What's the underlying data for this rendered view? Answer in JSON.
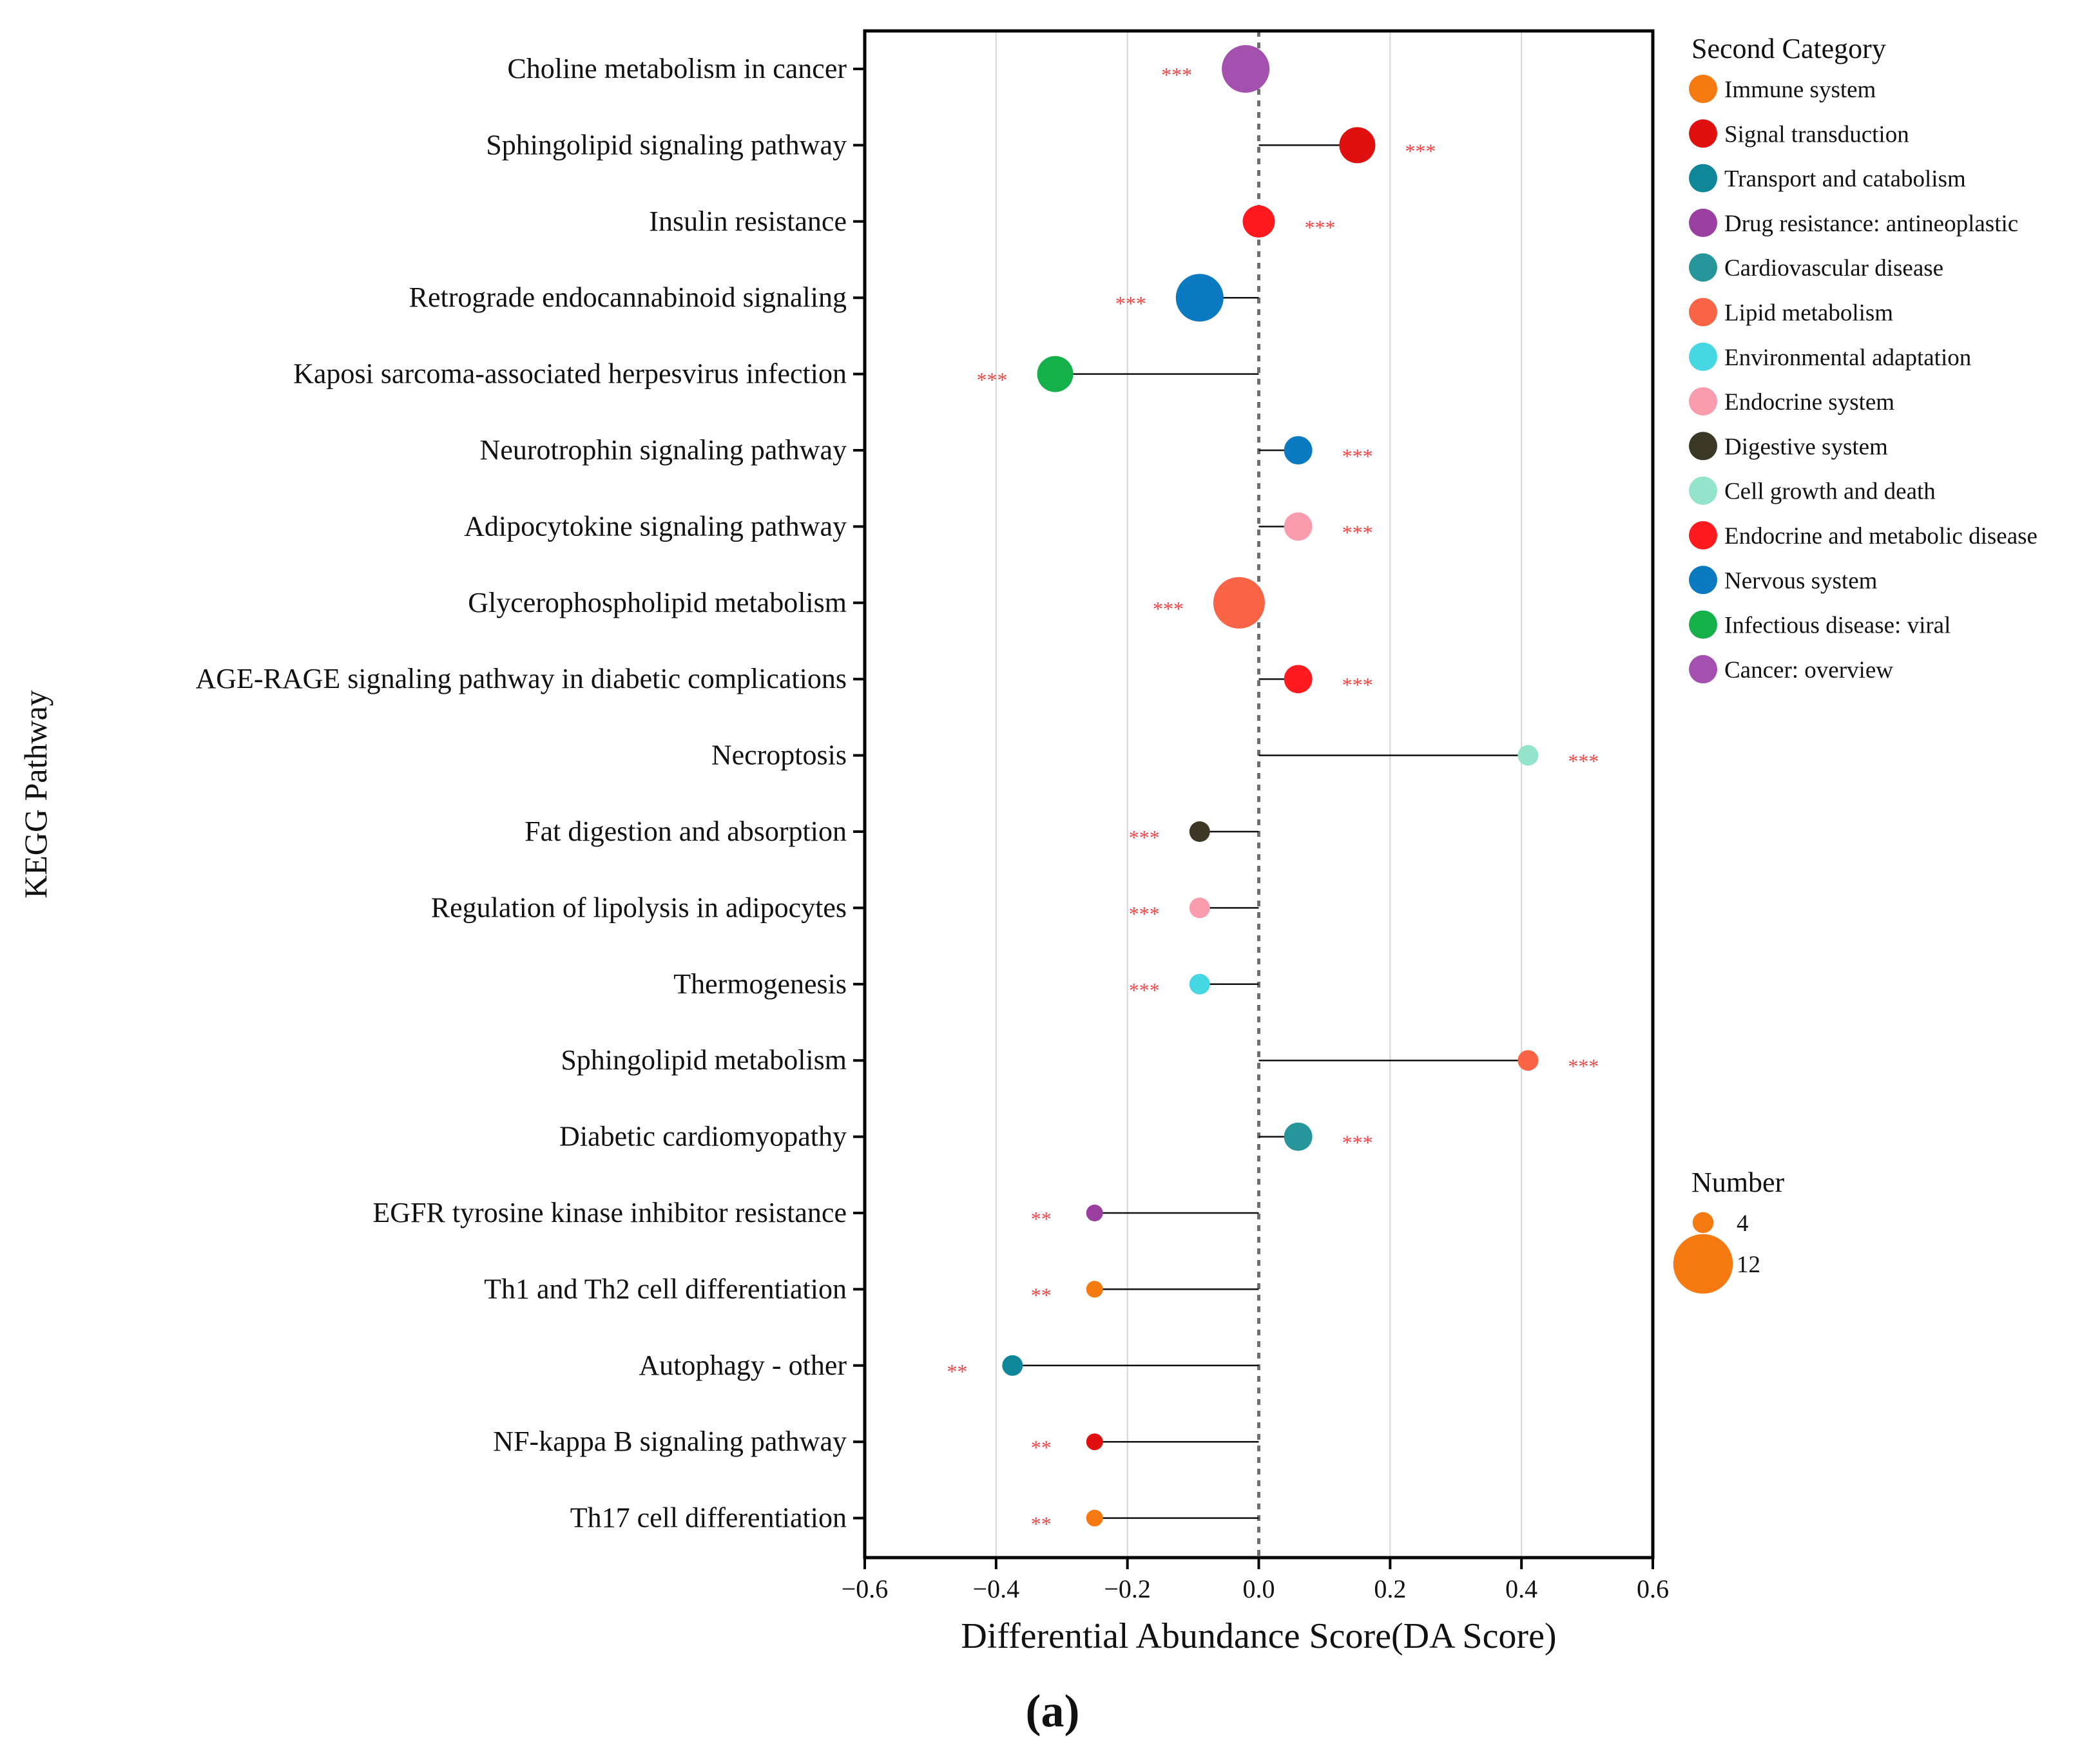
{
  "chart_data": {
    "type": "lollipop",
    "xlabel": "Differential Abundance Score(DA Score)",
    "ylabel": "KEGG Pathway",
    "xlim": [
      -0.6,
      0.6
    ],
    "xticks": [
      -0.6,
      -0.4,
      -0.2,
      0.0,
      0.2,
      0.4,
      0.6
    ],
    "xtick_labels": [
      "−0.6",
      "−0.4",
      "−0.2",
      "0.0",
      "0.2",
      "0.4",
      "0.6"
    ],
    "grid": "vertical",
    "panel_label": "(a)",
    "legend_category_title": "Second Category",
    "legend_size_title": "Number",
    "categories": [
      {
        "name": "Immune system",
        "color": "#F57A12"
      },
      {
        "name": "Signal transduction",
        "color": "#E01010"
      },
      {
        "name": "Transport and catabolism",
        "color": "#0F8799"
      },
      {
        "name": "Drug resistance: antineoplastic",
        "color": "#9A3FA0"
      },
      {
        "name": "Cardiovascular disease",
        "color": "#27969A"
      },
      {
        "name": "Lipid metabolism",
        "color": "#F96346"
      },
      {
        "name": "Environmental adaptation",
        "color": "#45D7E2"
      },
      {
        "name": "Endocrine system",
        "color": "#F99CAD"
      },
      {
        "name": "Digestive system",
        "color": "#3B3926"
      },
      {
        "name": "Cell growth and death",
        "color": "#94E3CB"
      },
      {
        "name": "Endocrine and metabolic disease",
        "color": "#FF1A1F"
      },
      {
        "name": "Nervous system",
        "color": "#0B7AC0"
      },
      {
        "name": "Infectious disease: viral",
        "color": "#15B04A"
      },
      {
        "name": "Cancer: overview",
        "color": "#A450AE"
      }
    ],
    "size_legend": [
      {
        "label": "4",
        "value": 4
      },
      {
        "label": "12",
        "value": 12
      }
    ],
    "significance_color": "#F04545",
    "pathways": [
      {
        "name": "Choline metabolism in cancer",
        "da": -0.02,
        "category": "Cancer: overview",
        "number": 12,
        "sig": "***"
      },
      {
        "name": "Sphingolipid signaling pathway",
        "da": 0.15,
        "category": "Signal transduction",
        "number": 9,
        "sig": "***"
      },
      {
        "name": "Insulin resistance",
        "da": 0.0,
        "category": "Endocrine and metabolic disease",
        "number": 8,
        "sig": "***"
      },
      {
        "name": "Retrograde endocannabinoid signaling",
        "da": -0.09,
        "category": "Nervous system",
        "number": 12,
        "sig": "***"
      },
      {
        "name": "Kaposi sarcoma-associated herpesvirus infection",
        "da": -0.31,
        "category": "Infectious disease: viral",
        "number": 9,
        "sig": "***"
      },
      {
        "name": "Neurotrophin signaling pathway",
        "da": 0.06,
        "category": "Nervous system",
        "number": 7,
        "sig": "***"
      },
      {
        "name": "Adipocytokine signaling pathway",
        "da": 0.06,
        "category": "Endocrine system",
        "number": 7,
        "sig": "***"
      },
      {
        "name": "Glycerophospholipid metabolism",
        "da": -0.03,
        "category": "Lipid metabolism",
        "number": 13,
        "sig": "***"
      },
      {
        "name": "AGE-RAGE signaling pathway in diabetic complications",
        "da": 0.06,
        "category": "Endocrine and metabolic disease",
        "number": 7,
        "sig": "***"
      },
      {
        "name": "Necroptosis",
        "da": 0.41,
        "category": "Cell growth and death",
        "number": 5,
        "sig": "***"
      },
      {
        "name": "Fat digestion and absorption",
        "da": -0.09,
        "category": "Digestive system",
        "number": 5,
        "sig": "***"
      },
      {
        "name": "Regulation of lipolysis in adipocytes",
        "da": -0.09,
        "category": "Endocrine system",
        "number": 5,
        "sig": "***"
      },
      {
        "name": "Thermogenesis",
        "da": -0.09,
        "category": "Environmental adaptation",
        "number": 5,
        "sig": "***"
      },
      {
        "name": "Sphingolipid metabolism",
        "da": 0.41,
        "category": "Lipid metabolism",
        "number": 5,
        "sig": "***"
      },
      {
        "name": "Diabetic cardiomyopathy",
        "da": 0.06,
        "category": "Cardiovascular disease",
        "number": 7,
        "sig": "***"
      },
      {
        "name": "EGFR tyrosine kinase inhibitor resistance",
        "da": -0.25,
        "category": "Drug resistance: antineoplastic",
        "number": 4,
        "sig": "**"
      },
      {
        "name": "Th1 and Th2 cell differentiation",
        "da": -0.25,
        "category": "Immune system",
        "number": 4,
        "sig": "**"
      },
      {
        "name": "Autophagy - other",
        "da": -0.375,
        "category": "Transport and catabolism",
        "number": 5,
        "sig": "**"
      },
      {
        "name": "NF-kappa B signaling pathway",
        "da": -0.25,
        "category": "Signal transduction",
        "number": 4,
        "sig": "**"
      },
      {
        "name": "Th17 cell differentiation",
        "da": -0.25,
        "category": "Immune system",
        "number": 4,
        "sig": "**"
      }
    ]
  }
}
